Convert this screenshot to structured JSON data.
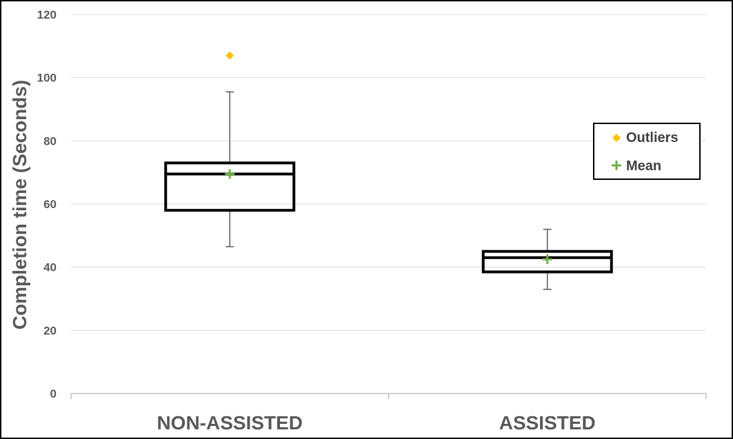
{
  "chart_data": {
    "type": "box",
    "title": "",
    "ylabel": "Completion time (Seconds)",
    "xlabel": "",
    "ylim": [
      0,
      120
    ],
    "yticks": [
      0,
      20,
      40,
      60,
      80,
      100,
      120
    ],
    "grid": true,
    "legend_position": "right",
    "categories": [
      "NON-ASSISTED",
      "ASSISTED"
    ],
    "boxes": [
      {
        "category": "NON-ASSISTED",
        "whisker_low": 46.5,
        "q1": 58,
        "median": 69.5,
        "q3": 73,
        "whisker_high": 95.5,
        "mean": 69.5,
        "outliers": [
          107
        ]
      },
      {
        "category": "ASSISTED",
        "whisker_low": 33,
        "q1": 38.5,
        "median": 43,
        "q3": 45,
        "whisker_high": 52,
        "mean": 42.5,
        "outliers": []
      }
    ],
    "legend": [
      {
        "label": "Outliers",
        "marker": "diamond",
        "color": "#FFC000"
      },
      {
        "label": "Mean",
        "marker": "plus",
        "color": "#70AD47"
      }
    ]
  }
}
